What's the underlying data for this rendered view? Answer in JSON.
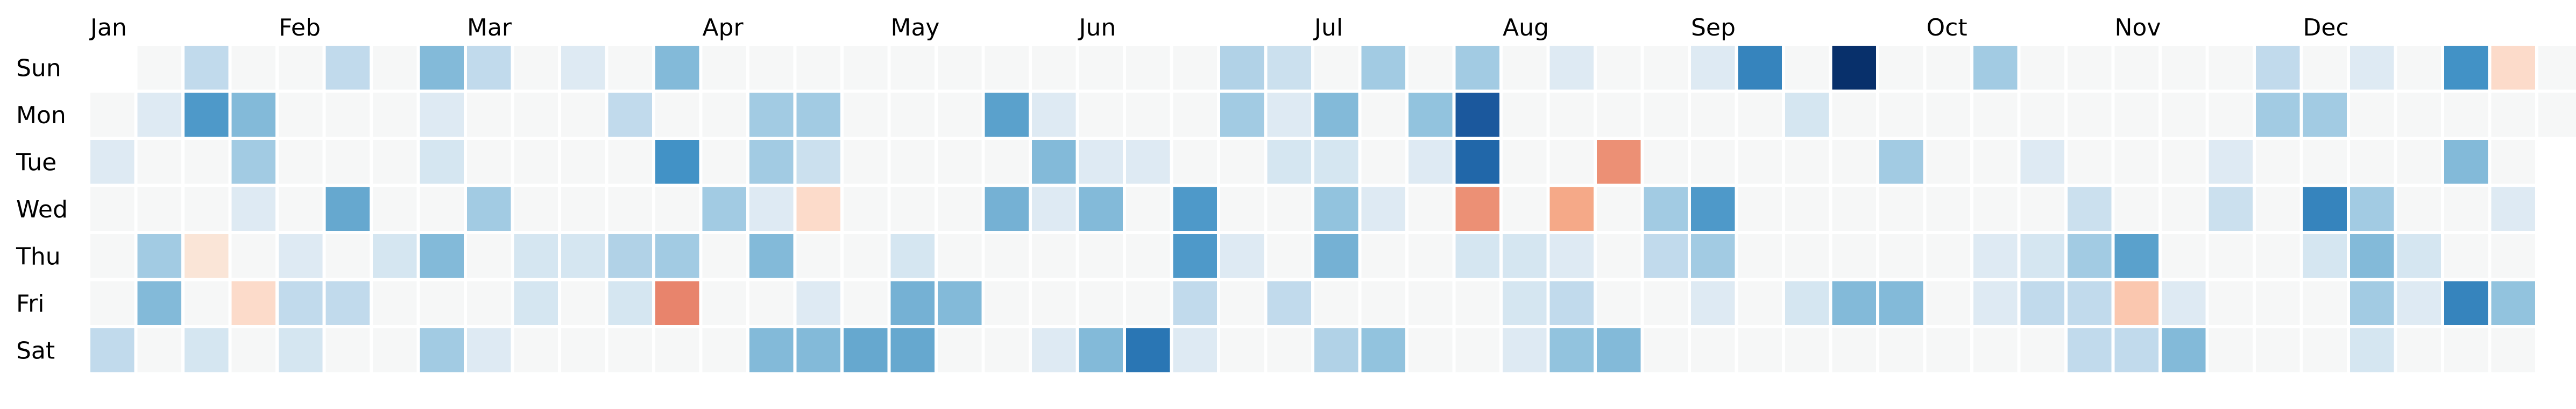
{
  "chart_data": {
    "type": "heatmap",
    "title": "",
    "xlabel": "",
    "ylabel": "",
    "months": [
      "Jan",
      "Feb",
      "Mar",
      "Apr",
      "May",
      "Jun",
      "Jul",
      "Aug",
      "Sep",
      "Oct",
      "Nov",
      "Dec"
    ],
    "weekdays": [
      "Sun",
      "Mon",
      "Tue",
      "Wed",
      "Thu",
      "Fri",
      "Sat"
    ],
    "week_count": 53,
    "first_weekday_index": 1,
    "value_range": [
      -1,
      1
    ],
    "grid": false,
    "colormap": "RdBu_r",
    "legend": "none",
    "note_missing": "0 = no data / neutral cell",
    "values": [
      [
        0,
        0,
        0.25,
        0,
        0,
        0.25,
        0,
        0.45,
        0.25,
        0,
        0.1,
        0,
        0.45,
        0,
        0,
        0,
        0,
        0,
        0,
        0,
        0,
        0,
        0,
        0,
        0.3,
        0.2,
        0,
        0.35,
        0,
        0.35,
        0,
        0.1,
        0,
        0,
        0.1,
        0.75,
        0,
        1.0,
        0,
        0,
        0.35,
        0,
        0,
        0,
        0,
        0,
        0.25,
        0,
        0.1,
        0,
        0.7,
        -0.2,
        0
      ],
      [
        0,
        0.1,
        0.65,
        0.45,
        0,
        0,
        0,
        0.1,
        0,
        0,
        0,
        0.25,
        0,
        0,
        0.35,
        0.35,
        0,
        0,
        0,
        0.6,
        0.1,
        0,
        0,
        0,
        0.35,
        0.1,
        0.45,
        0,
        0.4,
        0.9,
        0,
        0,
        0,
        0,
        0,
        0,
        0.15,
        0,
        0,
        0,
        0,
        0,
        0,
        0,
        0,
        0,
        0.35,
        0.35,
        0,
        0,
        0,
        0,
        0
      ],
      [
        0.1,
        0,
        0,
        0.35,
        0,
        0,
        0,
        0.15,
        0,
        0,
        0,
        0,
        0.7,
        0,
        0.35,
        0.2,
        0,
        0,
        0,
        0,
        0.45,
        0.1,
        0.1,
        0,
        0,
        0.15,
        0.15,
        0,
        0.1,
        0.85,
        0,
        0,
        -0.5,
        0,
        0,
        0,
        0,
        0,
        0.35,
        0,
        0,
        0.1,
        0,
        0,
        0,
        0.1,
        0,
        0,
        0,
        0,
        0.45,
        0,
        0
      ],
      [
        0,
        0,
        0,
        0.1,
        0,
        0.55,
        0,
        0,
        0.35,
        0,
        0,
        0,
        0,
        0.35,
        0.1,
        -0.2,
        0,
        0,
        0,
        0.5,
        0.1,
        0.45,
        0,
        0.65,
        0,
        0,
        0.4,
        0.1,
        0,
        -0.5,
        0,
        -0.4,
        0,
        0.35,
        0.65,
        0,
        0,
        0,
        0,
        0,
        0,
        0,
        0.2,
        0,
        0,
        0.2,
        0,
        0.75,
        0.35,
        0,
        0,
        0.1,
        0
      ],
      [
        0,
        0.35,
        -0.1,
        0,
        0.1,
        0,
        0.15,
        0.45,
        0,
        0.15,
        0.15,
        0.3,
        0.35,
        0,
        0.45,
        0,
        0,
        0.15,
        0,
        0,
        0,
        0,
        0,
        0.65,
        0.1,
        0,
        0.5,
        0,
        0,
        0.15,
        0.15,
        0.1,
        0,
        0.25,
        0.35,
        0,
        0,
        0,
        0,
        0,
        0.1,
        0.15,
        0.35,
        0.6,
        0,
        0,
        0,
        0.15,
        0.45,
        0.15,
        0,
        0,
        0
      ],
      [
        0,
        0.45,
        0,
        -0.2,
        0.25,
        0.25,
        0,
        0,
        0,
        0.15,
        0,
        0.15,
        -0.55,
        0,
        0,
        0.1,
        0,
        0.5,
        0.45,
        0,
        0,
        0,
        0,
        0.25,
        0,
        0.25,
        0,
        0,
        0,
        0,
        0.15,
        0.25,
        0,
        0,
        0.1,
        0,
        0.15,
        0.45,
        0.45,
        0,
        0.1,
        0.25,
        0.25,
        -0.3,
        0.1,
        0,
        0,
        0,
        0.35,
        0.1,
        0.75,
        0.4,
        0
      ],
      [
        0.25,
        0,
        0.15,
        0,
        0.15,
        0,
        0,
        0.35,
        0.1,
        0,
        0,
        0,
        0,
        0,
        0.45,
        0.45,
        0.55,
        0.55,
        0,
        0,
        0.1,
        0.45,
        0.8,
        0.1,
        0,
        0,
        0.3,
        0.4,
        0,
        0,
        0.1,
        0.4,
        0.45,
        0,
        0,
        0,
        0,
        0,
        0,
        0,
        0,
        0,
        0.25,
        0.25,
        0.45,
        0,
        0,
        0,
        0.15,
        0,
        0,
        0,
        0
      ]
    ]
  }
}
